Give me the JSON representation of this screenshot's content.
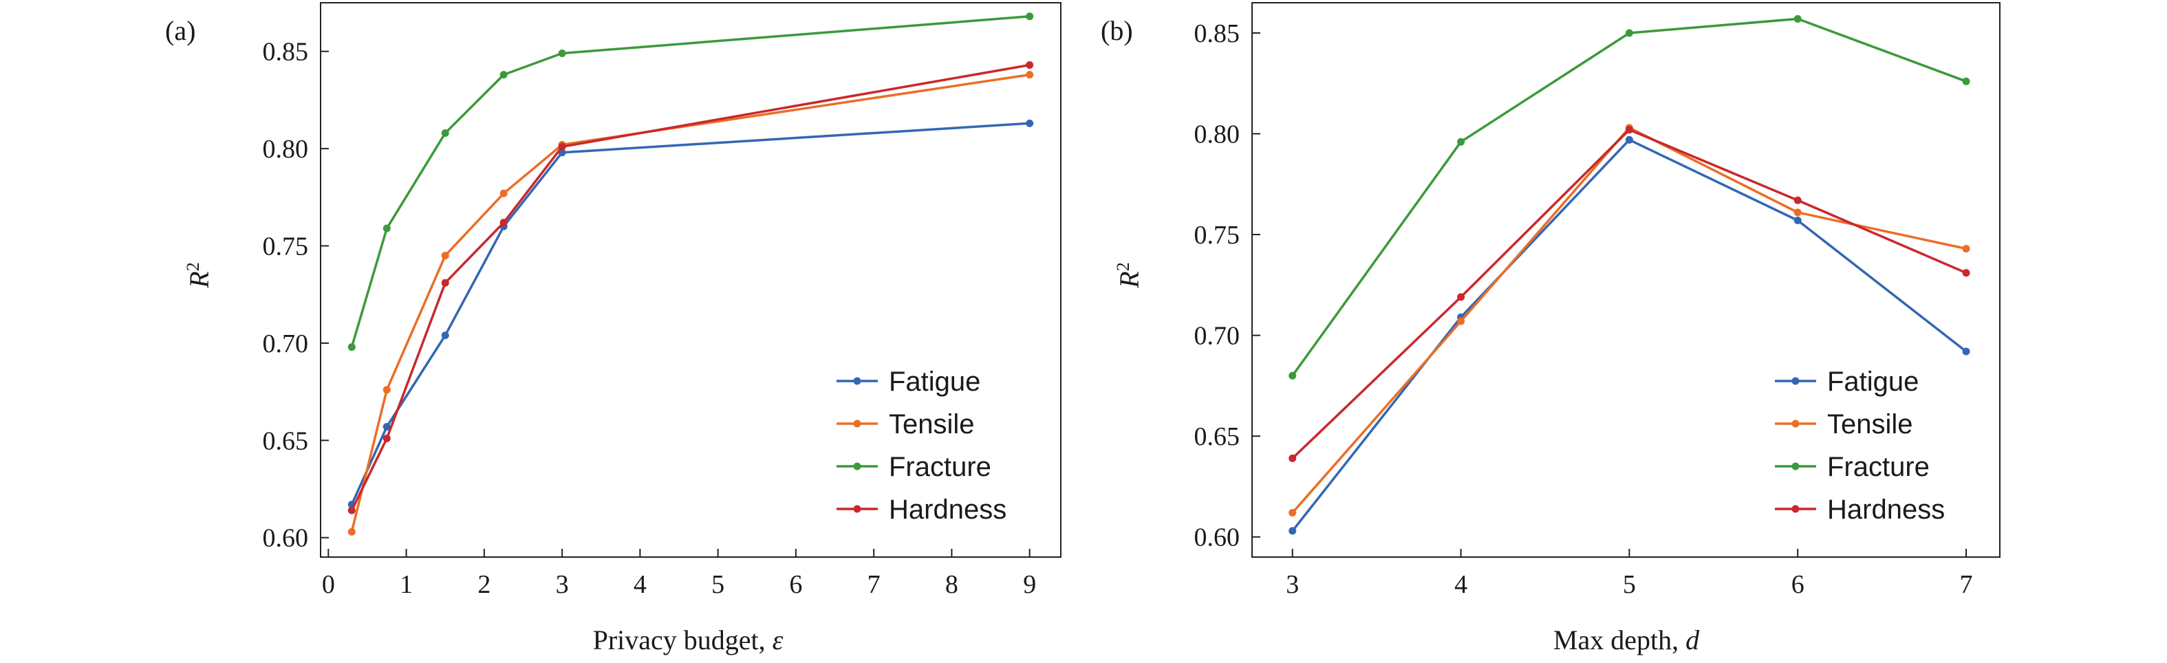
{
  "chart_data": [
    {
      "type": "line",
      "panel_label": "(a)",
      "xlabel_main": "Privacy budget, ",
      "xlabel_var": "ε",
      "ylabel_main": "R",
      "ylabel_sup": "2",
      "xlim": [
        -0.1,
        9.4
      ],
      "ylim": [
        0.59,
        0.875
      ],
      "xticks": [
        0,
        1,
        2,
        3,
        4,
        5,
        6,
        7,
        8,
        9
      ],
      "yticks": [
        0.6,
        0.65,
        0.7,
        0.75,
        0.8,
        0.85
      ],
      "legend_position": "lower-right",
      "x": [
        0.3,
        0.75,
        1.5,
        2.25,
        3,
        9
      ],
      "series": [
        {
          "name": "Fatigue",
          "color": "#3467b3",
          "values": [
            0.617,
            0.657,
            0.704,
            0.76,
            0.798,
            0.813
          ]
        },
        {
          "name": "Tensile",
          "color": "#ea6e27",
          "values": [
            0.603,
            0.676,
            0.745,
            0.777,
            0.802,
            0.838
          ]
        },
        {
          "name": "Fracture",
          "color": "#3b9a3b",
          "values": [
            0.698,
            0.759,
            0.808,
            0.838,
            0.849,
            0.868
          ]
        },
        {
          "name": "Hardness",
          "color": "#c9282c",
          "values": [
            0.614,
            0.651,
            0.731,
            0.762,
            0.801,
            0.843
          ]
        }
      ]
    },
    {
      "type": "line",
      "panel_label": "(b)",
      "xlabel_main": "Max depth, ",
      "xlabel_var": "d",
      "ylabel_main": "R",
      "ylabel_sup": "2",
      "xlim": [
        2.76,
        7.2
      ],
      "ylim": [
        0.59,
        0.865
      ],
      "xticks": [
        3,
        4,
        5,
        6,
        7
      ],
      "yticks": [
        0.6,
        0.65,
        0.7,
        0.75,
        0.8,
        0.85
      ],
      "legend_position": "lower-right",
      "x": [
        3,
        4,
        5,
        6,
        7
      ],
      "series": [
        {
          "name": "Fatigue",
          "color": "#3467b3",
          "values": [
            0.603,
            0.709,
            0.797,
            0.757,
            0.692
          ]
        },
        {
          "name": "Tensile",
          "color": "#ea6e27",
          "values": [
            0.612,
            0.707,
            0.803,
            0.761,
            0.743
          ]
        },
        {
          "name": "Fracture",
          "color": "#3b9a3b",
          "values": [
            0.68,
            0.796,
            0.85,
            0.857,
            0.826
          ]
        },
        {
          "name": "Hardness",
          "color": "#c9282c",
          "values": [
            0.639,
            0.719,
            0.802,
            0.767,
            0.731
          ]
        }
      ]
    }
  ]
}
